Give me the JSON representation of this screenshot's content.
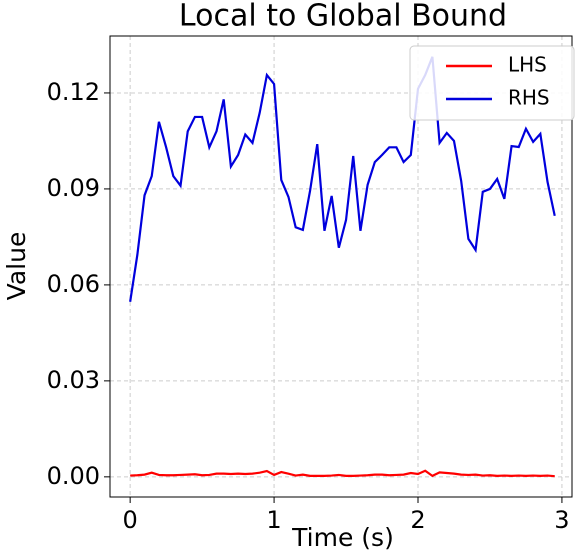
{
  "chart_data": {
    "type": "line",
    "title": "Local to Global Bound",
    "xlabel": "Time (s)",
    "ylabel": "Value",
    "x": [
      0,
      0.05,
      0.1,
      0.15,
      0.2,
      0.25,
      0.3,
      0.35,
      0.4,
      0.45,
      0.5,
      0.55,
      0.6,
      0.65,
      0.7,
      0.75,
      0.8,
      0.85,
      0.9,
      0.95,
      1.0,
      1.05,
      1.1,
      1.15,
      1.2,
      1.25,
      1.3,
      1.35,
      1.4,
      1.45,
      1.5,
      1.55,
      1.6,
      1.65,
      1.7,
      1.75,
      1.8,
      1.85,
      1.9,
      1.95,
      2.0,
      2.05,
      2.1,
      2.15,
      2.2,
      2.25,
      2.3,
      2.35,
      2.4,
      2.45,
      2.5,
      2.55,
      2.6,
      2.65,
      2.7,
      2.75,
      2.8,
      2.85,
      2.9,
      2.95
    ],
    "series": [
      {
        "name": "LHS",
        "color": "#ff0000",
        "values": [
          0.0004,
          0.0005,
          0.0007,
          0.0013,
          0.0006,
          0.0005,
          0.0005,
          0.0006,
          0.0007,
          0.0008,
          0.0005,
          0.0006,
          0.001,
          0.001,
          0.0009,
          0.001,
          0.0009,
          0.001,
          0.0013,
          0.0018,
          0.0006,
          0.0015,
          0.001,
          0.0004,
          0.0007,
          0.0003,
          0.0003,
          0.0003,
          0.0004,
          0.0006,
          0.0003,
          0.0003,
          0.0004,
          0.0005,
          0.0007,
          0.0007,
          0.0005,
          0.0006,
          0.0007,
          0.0012,
          0.0009,
          0.0019,
          0.0003,
          0.0014,
          0.0012,
          0.001,
          0.0007,
          0.0006,
          0.0007,
          0.0004,
          0.0005,
          0.0003,
          0.0004,
          0.0003,
          0.0004,
          0.0003,
          0.0004,
          0.0003,
          0.0004,
          0.0002
        ]
      },
      {
        "name": "RHS",
        "color": "#0000dd",
        "values": [
          0.0547,
          0.0694,
          0.088,
          0.094,
          0.111,
          0.103,
          0.094,
          0.091,
          0.108,
          0.1125,
          0.1125,
          0.103,
          0.108,
          0.118,
          0.097,
          0.1006,
          0.107,
          0.1044,
          0.1138,
          0.1256,
          0.1228,
          0.0928,
          0.0875,
          0.078,
          0.0772,
          0.0894,
          0.104,
          0.0769,
          0.0878,
          0.0716,
          0.0803,
          0.1003,
          0.0769,
          0.0913,
          0.0984,
          0.1006,
          0.103,
          0.103,
          0.0984,
          0.1006,
          0.1213,
          0.1256,
          0.1313,
          0.1044,
          0.1075,
          0.105,
          0.0925,
          0.0744,
          0.0709,
          0.0891,
          0.09,
          0.0931,
          0.0869,
          0.1034,
          0.1031,
          0.1088,
          0.1047,
          0.1072,
          0.0922,
          0.0816
        ]
      }
    ],
    "xlim": [
      -0.14,
      3.07
    ],
    "ylim": [
      -0.0063,
      0.1378
    ],
    "xticks": [
      0,
      1,
      2,
      3
    ],
    "yticks": [
      {
        "value": 0,
        "label": "0.00"
      },
      {
        "value": 0.03,
        "label": "0.03"
      },
      {
        "value": 0.06,
        "label": "0.06"
      },
      {
        "value": 0.09,
        "label": "0.09"
      },
      {
        "value": 0.12,
        "label": "0.12"
      }
    ],
    "grid": true,
    "legend": "upper right"
  }
}
